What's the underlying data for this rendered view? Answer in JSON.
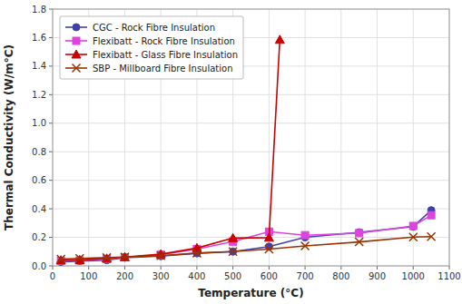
{
  "chart_data": {
    "type": "line",
    "xlabel": "Temperature (°C)",
    "ylabel": "Thermal Conductivity (W/m°C)",
    "series": [
      {
        "name": "CGC - Rock Fibre Insulation",
        "color": "#4040aa",
        "marker": "circle",
        "x": [
          23,
          75,
          150,
          200,
          300,
          400,
          500,
          600,
          700,
          850,
          1000,
          1050
        ],
        "values": [
          0.028,
          0.034,
          0.04,
          0.058,
          0.068,
          0.088,
          0.1,
          0.135,
          0.2,
          0.235,
          0.275,
          0.39
        ]
      },
      {
        "name": "Flexibatt - Rock Fibre Insulation",
        "color": "#dd44dd",
        "marker": "square",
        "x": [
          23,
          75,
          150,
          200,
          300,
          400,
          500,
          600,
          700,
          850,
          1000,
          1050
        ],
        "values": [
          0.035,
          0.038,
          0.048,
          0.06,
          0.078,
          0.118,
          0.17,
          0.24,
          0.215,
          0.23,
          0.28,
          0.355
        ]
      },
      {
        "name": "Flexibatt - Glass Fibre Insulation",
        "color": "#cc0000",
        "marker": "triangle",
        "x": [
          23,
          75,
          150,
          200,
          300,
          400,
          500,
          600,
          630
        ],
        "values": [
          0.04,
          0.042,
          0.052,
          0.062,
          0.082,
          0.125,
          0.195,
          0.198,
          1.585
        ]
      },
      {
        "name": "SBP - Millboard  Fibre Insulation",
        "color": "#993300",
        "marker": "x",
        "x": [
          23,
          75,
          150,
          200,
          300,
          400,
          500,
          600,
          700,
          850,
          1000,
          1050
        ],
        "values": [
          0.048,
          0.052,
          0.058,
          0.062,
          0.072,
          0.09,
          0.1,
          0.118,
          0.14,
          0.168,
          0.202,
          0.205
        ]
      }
    ],
    "xlim": [
      0,
      1100
    ],
    "ylim": [
      0,
      1.8
    ],
    "xticks": [
      0,
      100,
      200,
      300,
      400,
      500,
      600,
      700,
      800,
      900,
      1000,
      1100
    ],
    "yticks": [
      {
        "value": 0.0,
        "label": "0.0"
      },
      0.2,
      0.4,
      0.6,
      0.8,
      {
        "value": 1.0,
        "label": "1.0"
      },
      1.2,
      1.4,
      1.6,
      1.8
    ],
    "grid": true,
    "legend": "upper left"
  }
}
